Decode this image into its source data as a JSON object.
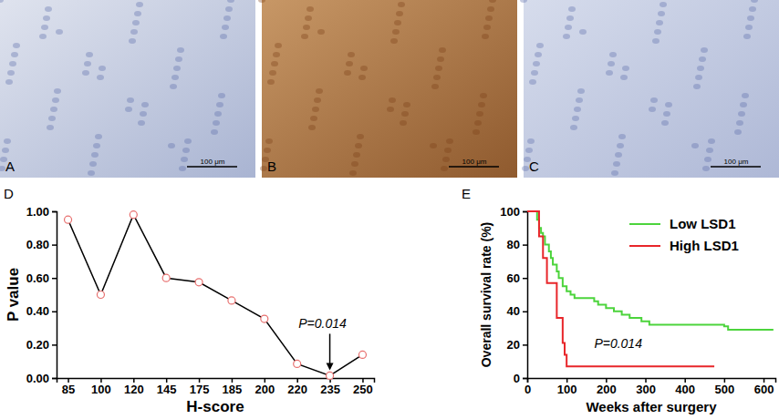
{
  "images": {
    "panels": [
      {
        "label": "A"
      },
      {
        "label": "B"
      },
      {
        "label": "C"
      }
    ],
    "scale_bar": "100 μm"
  },
  "chart_data": [
    {
      "type": "line",
      "panel_label": "D",
      "x_label": "H-score",
      "y_label": "P value",
      "categories": [
        85,
        100,
        120,
        145,
        175,
        185,
        200,
        220,
        235,
        250
      ],
      "series": [
        {
          "color": "#e8706f",
          "marker": "open-circle",
          "values": [
            0.95,
            0.5,
            0.98,
            0.6,
            0.575,
            0.465,
            0.355,
            0.085,
            0.014,
            0.14
          ]
        }
      ],
      "ylim": [
        0,
        1
      ],
      "yticks": [
        {
          "value": 0,
          "label": "0.00"
        },
        {
          "value": 0.2,
          "label": "0.20"
        },
        {
          "value": 0.4,
          "label": "0.40"
        },
        {
          "value": 0.6,
          "label": "0.60"
        },
        {
          "value": 0.8,
          "label": "0.80"
        },
        {
          "value": 1,
          "label": "1.00"
        }
      ],
      "annotations": [
        {
          "text": "P=0.014",
          "x": 235,
          "y": 0.014
        }
      ]
    },
    {
      "type": "line",
      "panel_label": "E",
      "x_label": "Weeks after surgery",
      "y_label": "Overall survival rate (%)",
      "series": [
        {
          "name": "Low LSD1",
          "color": "#4cd43c",
          "line_style": "step",
          "x": [
            0,
            20,
            25,
            30,
            35,
            40,
            45,
            55,
            60,
            65,
            75,
            80,
            90,
            100,
            110,
            120,
            150,
            170,
            180,
            200,
            220,
            240,
            260,
            290,
            310,
            400,
            500,
            510,
            625
          ],
          "values": [
            100,
            100,
            95,
            90,
            87,
            85,
            80,
            76,
            72,
            68,
            64,
            60,
            55,
            52,
            50,
            48,
            48,
            46,
            44,
            42,
            40,
            38,
            36,
            34,
            32,
            32,
            31,
            29,
            29
          ]
        },
        {
          "name": "High LSD1",
          "color": "#e8262a",
          "line_style": "step",
          "x": [
            0,
            25,
            30,
            40,
            50,
            70,
            75,
            85,
            90,
            95,
            100,
            475
          ],
          "values": [
            100,
            100,
            85,
            72,
            57,
            57,
            36,
            36,
            21,
            14,
            7,
            7
          ]
        }
      ],
      "xlim": [
        0,
        630
      ],
      "xticks": [
        0,
        100,
        200,
        300,
        400,
        500,
        600
      ],
      "ylim": [
        0,
        100
      ],
      "yticks": [
        0,
        20,
        40,
        60,
        80,
        100
      ],
      "legend": "top-right",
      "annotations": [
        {
          "text": "P=0.014",
          "x": 170,
          "y": 18
        }
      ]
    }
  ]
}
